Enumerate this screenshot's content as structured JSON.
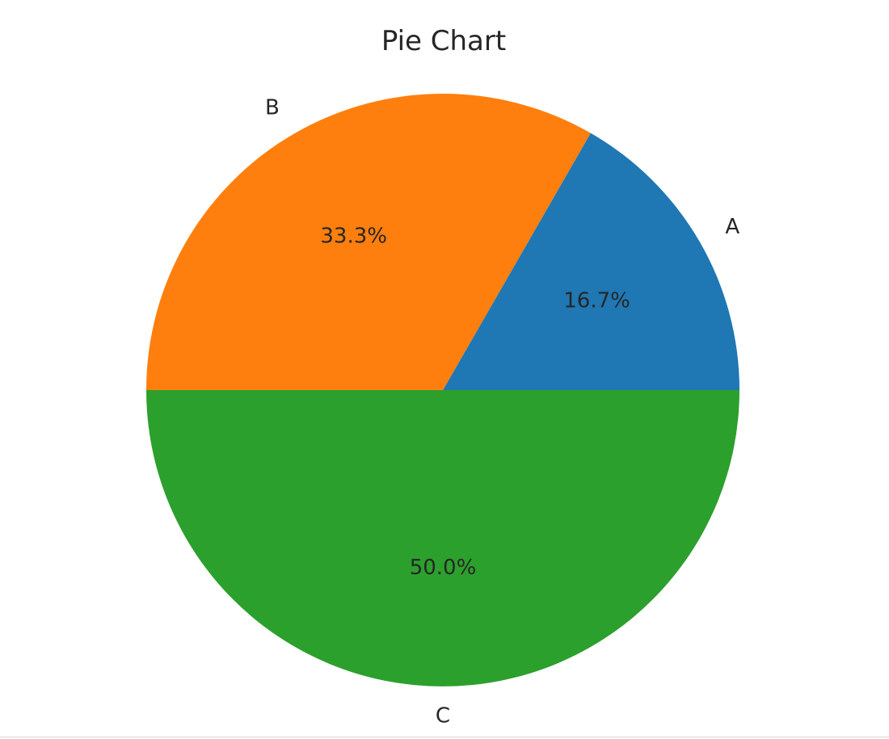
{
  "chart_data": {
    "type": "pie",
    "title": "Pie Chart",
    "categories": [
      "A",
      "B",
      "C"
    ],
    "values": [
      16.7,
      33.3,
      50.0
    ],
    "percent_labels": [
      "16.7%",
      "33.3%",
      "50.0%"
    ],
    "colors": [
      "#1f77b4",
      "#ff7f0e",
      "#2ca02c"
    ],
    "start_angle_deg": 0,
    "direction": "counterclockwise",
    "legend": "none"
  }
}
